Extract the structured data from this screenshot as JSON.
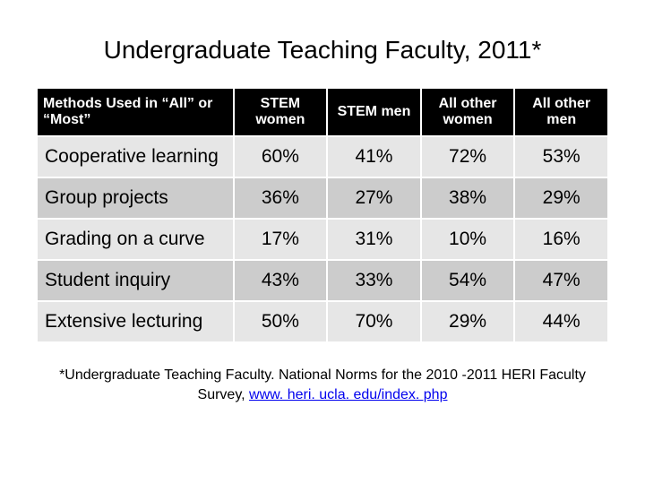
{
  "title": "Undergraduate Teaching Faculty, 2011*",
  "table": {
    "headers": {
      "col0": "Methods Used in “All” or “Most”",
      "col1": "STEM women",
      "col2": "STEM men",
      "col3": "All other women",
      "col4": "All other men"
    },
    "rows": [
      {
        "label": "Cooperative learning",
        "c1": "60%",
        "c2": "41%",
        "c3": "72%",
        "c4": "53%"
      },
      {
        "label": "Group projects",
        "c1": "36%",
        "c2": "27%",
        "c3": "38%",
        "c4": "29%"
      },
      {
        "label": "Grading on a curve",
        "c1": "17%",
        "c2": "31%",
        "c3": "10%",
        "c4": "16%"
      },
      {
        "label": "Student inquiry",
        "c1": "43%",
        "c2": "33%",
        "c3": "54%",
        "c4": "47%"
      },
      {
        "label": "Extensive lecturing",
        "c1": "50%",
        "c2": "70%",
        "c3": "29%",
        "c4": "44%"
      }
    ]
  },
  "footnote": {
    "prefix": "*Undergraduate Teaching Faculty. National Norms for the 2010 -2011 HERI Faculty Survey, ",
    "link_text": "www. heri. ucla. edu/index. php"
  },
  "colors": {
    "header_bg": "#000000",
    "header_text": "#ffffff",
    "row_odd_bg": "#e6e6e6",
    "row_even_bg": "#cccccc",
    "link_color": "#0000ee",
    "background": "#ffffff"
  },
  "typography": {
    "title_fontsize": 28,
    "header_fontsize": 16,
    "cell_fontsize": 21,
    "footnote_fontsize": 16,
    "font_family": "Arial"
  }
}
